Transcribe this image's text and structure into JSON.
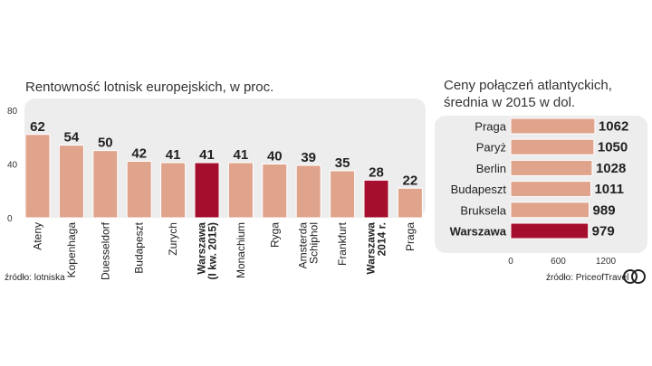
{
  "chart_data": [
    {
      "type": "bar",
      "title": "Rentowność lotnisk europejskich, w proc.",
      "categories": [
        "Ateny",
        "Kopenhaga",
        "Duesseldorf",
        "Budapeszt",
        "Zurych",
        "Warszawa (I kw. 2015)",
        "Monachium",
        "Ryga",
        "Amsterda Schiphol",
        "Frankfurt",
        "Warszawa 2014 r.",
        "Praga"
      ],
      "category_lines": [
        [
          "Ateny"
        ],
        [
          "Kopenhaga"
        ],
        [
          "Duesseldorf"
        ],
        [
          "Budapeszt"
        ],
        [
          "Zurych"
        ],
        [
          "Warszawa",
          "(I kw. 2015)"
        ],
        [
          "Monachium"
        ],
        [
          "Ryga"
        ],
        [
          "Amsterda",
          "Schiphol"
        ],
        [
          "Frankfurt"
        ],
        [
          "Warszawa",
          "2014 r."
        ],
        [
          "Praga"
        ]
      ],
      "values": [
        62,
        54,
        50,
        42,
        41,
        41,
        41,
        40,
        39,
        35,
        28,
        22
      ],
      "highlighted": [
        false,
        false,
        false,
        false,
        false,
        true,
        false,
        false,
        false,
        false,
        true,
        false
      ],
      "yticks": [
        "0",
        "40",
        "80"
      ],
      "ylim": [
        0,
        80
      ],
      "source": "źródło: lotniska"
    },
    {
      "type": "bar",
      "orientation": "horizontal",
      "title_lines": [
        "Ceny połączeń atlantyckich,",
        "średnia w 2015 w dol."
      ],
      "categories": [
        "Praga",
        "Paryż",
        "Berlin",
        "Budapeszt",
        "Bruksela",
        "Warszawa"
      ],
      "values": [
        1062,
        1050,
        1028,
        1011,
        989,
        979
      ],
      "highlighted": [
        false,
        false,
        false,
        false,
        false,
        true
      ],
      "xticks": [
        "0",
        "600",
        "1200"
      ],
      "xlim": [
        0,
        1200
      ],
      "source": "źródło: PriceofTravel"
    }
  ],
  "colors": {
    "bar": "#e0a38c",
    "highlight": "#a50f2d",
    "panel": "#ededed",
    "bar_stroke": "#ffffff"
  },
  "logo_text": "CP"
}
